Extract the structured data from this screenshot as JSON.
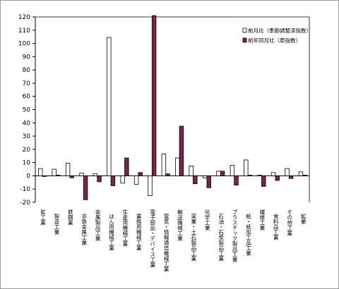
{
  "chart_data": {
    "type": "bar",
    "categories": [
      "鉱工業",
      "製造工業",
      "鉄鋼業",
      "非鉄金属工業",
      "金属製品工業",
      "はん用機械工業",
      "生産用機械工業",
      "業務用機械工業",
      "電子部品・デバイス工業",
      "電気・情報通信機械工業",
      "輸送機械工業",
      "窯業・土石製品工業",
      "化学工業",
      "石油・石炭製品工業",
      "プラスチック製品工業",
      "紙・紙加工品工業",
      "繊維工業",
      "食料品工業",
      "その他工業",
      "鉱業"
    ],
    "series": [
      {
        "name": "前月比（季節調整済指数）",
        "color": "#ffffff",
        "values": [
          5.5,
          5.0,
          9.5,
          2.0,
          1.5,
          104.5,
          -5.5,
          -6.5,
          -15.0,
          16.5,
          13.5,
          7.5,
          -1.5,
          3.5,
          8.0,
          12.0,
          0.5,
          2.5,
          5.5,
          3.0
        ]
      },
      {
        "name": "前年同月比（原指数）",
        "color": "#7a2448",
        "values": [
          -0.5,
          0.5,
          -1.5,
          -18.0,
          -4.5,
          -7.5,
          13.5,
          2.5,
          121.0,
          1.5,
          37.5,
          -6.0,
          -9.0,
          3.5,
          -7.0,
          0.5,
          -8.0,
          -3.5,
          -2.0,
          0.5
        ]
      }
    ],
    "ylim": [
      -20,
      120
    ],
    "yticks": [
      -20,
      -10,
      0,
      10,
      20,
      30,
      40,
      50,
      60,
      70,
      80,
      90,
      100,
      110,
      120
    ],
    "grid": false,
    "legend_position": "top-right"
  }
}
